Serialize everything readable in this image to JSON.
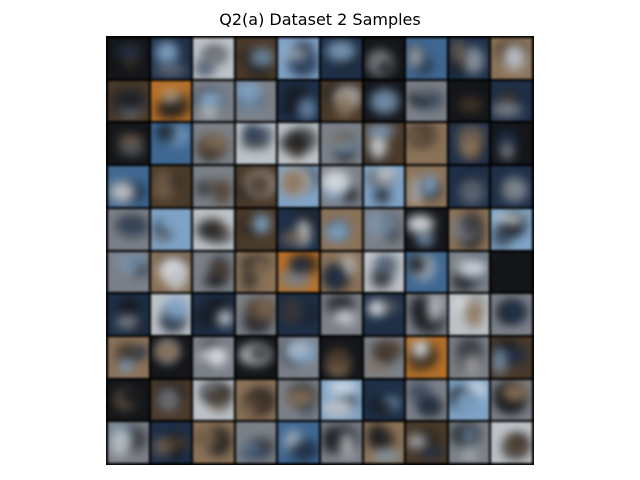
{
  "figure": {
    "title": "Q2(a) Dataset 2 Samples",
    "grid": {
      "rows": 10,
      "cols": 10
    },
    "palette": {
      "dark": "#14161a",
      "navy": "#1e2f47",
      "blue": "#3f6791",
      "skyblue": "#7fa3c6",
      "gray": "#7b8088",
      "lightgray": "#bcc2c7",
      "brown": "#4a3a2a",
      "tan": "#8a7258",
      "orange": "#b5702a",
      "white": "#e4e8ec"
    }
  }
}
